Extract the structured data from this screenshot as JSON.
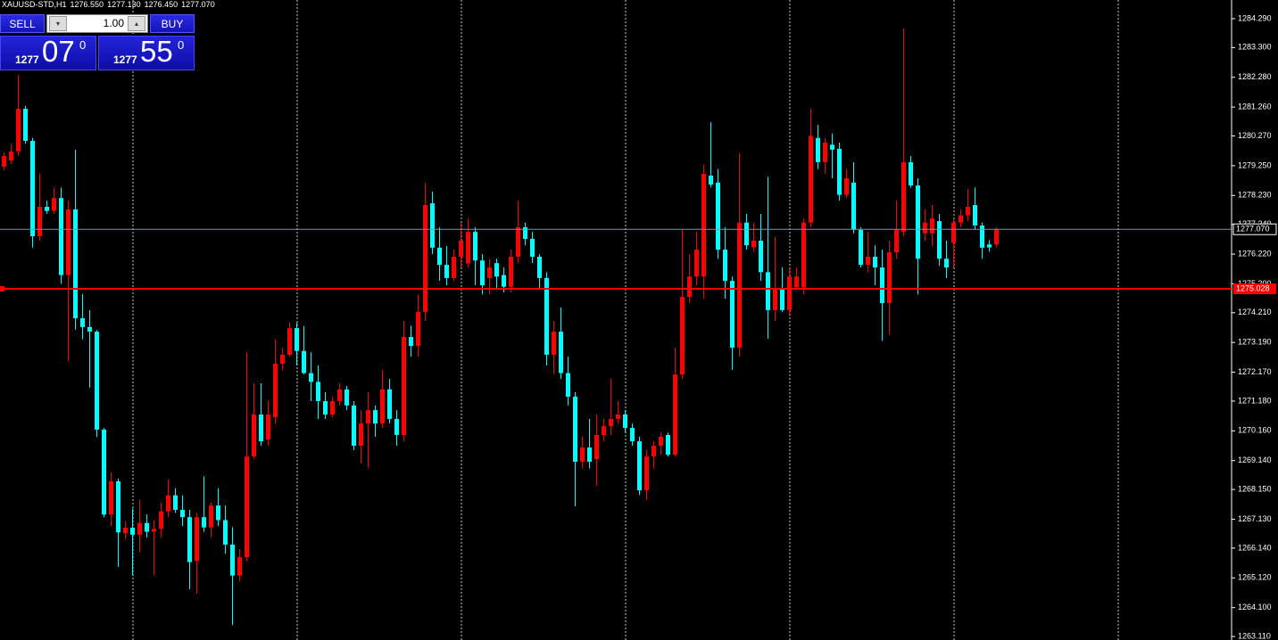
{
  "header": {
    "symbol": "XAUUSD-STD,H1",
    "quote": [
      "1276.550",
      "1277.130",
      "1276.450",
      "1277.070"
    ]
  },
  "trade_panel": {
    "sell": "SELL",
    "buy": "BUY",
    "lots": "1.00",
    "bid": {
      "big": "1277",
      "digits": "07",
      "pip": "0"
    },
    "ask": {
      "big": "1277",
      "digits": "55",
      "pip": "0"
    }
  },
  "chart_data": {
    "type": "candlestick",
    "up_color": "#ff0000",
    "down_color": "#00ffff",
    "ylim": [
      1262.99,
      1284.93
    ],
    "yticks": [
      {
        "value": 1284.29,
        "label": "1284.290"
      },
      {
        "value": 1283.3,
        "label": "1283.300"
      },
      {
        "value": 1282.28,
        "label": "1282.280"
      },
      {
        "value": 1281.26,
        "label": "1281.260"
      },
      {
        "value": 1280.27,
        "label": "1280.270"
      },
      {
        "value": 1279.25,
        "label": "1279.250"
      },
      {
        "value": 1278.23,
        "label": "1278.230"
      },
      {
        "value": 1277.24,
        "label": "1277.240"
      },
      {
        "value": 1276.22,
        "label": "1276.220"
      },
      {
        "value": 1275.2,
        "label": "1275.200"
      },
      {
        "value": 1274.21,
        "label": "1274.210"
      },
      {
        "value": 1273.19,
        "label": "1273.190"
      },
      {
        "value": 1272.17,
        "label": "1272.170"
      },
      {
        "value": 1271.18,
        "label": "1271.180"
      },
      {
        "value": 1270.16,
        "label": "1270.160"
      },
      {
        "value": 1269.14,
        "label": "1269.140"
      },
      {
        "value": 1268.15,
        "label": "1268.150"
      },
      {
        "value": 1267.13,
        "label": "1267.130"
      },
      {
        "value": 1266.14,
        "label": "1266.140"
      },
      {
        "value": 1265.12,
        "label": "1265.120"
      },
      {
        "value": 1264.1,
        "label": "1264.100"
      },
      {
        "value": 1263.11,
        "label": "1263.110"
      }
    ],
    "price_line": {
      "value": 1277.07,
      "label": "1277.070",
      "color": "#7f93a8"
    },
    "level_line": {
      "value": 1275.028,
      "label": "1275.028",
      "color": "#ff0000"
    },
    "ohlc": [
      [
        1279.22,
        1279.7,
        1279.1,
        1279.58
      ],
      [
        1279.43,
        1280.0,
        1279.3,
        1279.74
      ],
      [
        1279.74,
        1282.36,
        1279.6,
        1281.2
      ],
      [
        1281.2,
        1281.3,
        1280.0,
        1280.1
      ],
      [
        1280.1,
        1280.2,
        1276.44,
        1276.83
      ],
      [
        1276.83,
        1278.97,
        1276.68,
        1277.84
      ],
      [
        1277.84,
        1278.05,
        1277.6,
        1277.7
      ],
      [
        1277.7,
        1278.5,
        1277.6,
        1278.14
      ],
      [
        1278.14,
        1278.5,
        1275.2,
        1275.5
      ],
      [
        1275.5,
        1278.05,
        1272.55,
        1277.75
      ],
      [
        1277.75,
        1279.8,
        1273.63,
        1274.02
      ],
      [
        1274.02,
        1274.85,
        1273.3,
        1273.72
      ],
      [
        1273.72,
        1274.3,
        1271.64,
        1273.56
      ],
      [
        1273.56,
        1273.62,
        1269.95,
        1270.2
      ],
      [
        1270.2,
        1270.26,
        1267.2,
        1267.29
      ],
      [
        1267.29,
        1268.74,
        1266.9,
        1268.43
      ],
      [
        1268.43,
        1268.53,
        1265.5,
        1266.68
      ],
      [
        1266.65,
        1267.05,
        1266.45,
        1266.84
      ],
      [
        1266.84,
        1267.5,
        1265.2,
        1266.6
      ],
      [
        1266.6,
        1267.8,
        1266.0,
        1267.0
      ],
      [
        1267.0,
        1267.3,
        1266.5,
        1266.7
      ],
      [
        1266.7,
        1267.1,
        1265.2,
        1266.8
      ],
      [
        1266.8,
        1267.7,
        1266.5,
        1267.4
      ],
      [
        1267.4,
        1268.5,
        1267.2,
        1267.95
      ],
      [
        1267.95,
        1268.2,
        1267.35,
        1267.45
      ],
      [
        1267.45,
        1267.95,
        1266.9,
        1267.2
      ],
      [
        1267.2,
        1267.45,
        1264.73,
        1265.66
      ],
      [
        1265.7,
        1267.35,
        1264.58,
        1267.2
      ],
      [
        1267.2,
        1268.6,
        1266.7,
        1266.85
      ],
      [
        1266.85,
        1267.7,
        1266.5,
        1267.6
      ],
      [
        1267.6,
        1268.2,
        1266.9,
        1267.1
      ],
      [
        1267.1,
        1267.6,
        1265.95,
        1266.26
      ],
      [
        1266.26,
        1266.86,
        1263.5,
        1265.2
      ],
      [
        1265.2,
        1266.1,
        1265.0,
        1265.83
      ],
      [
        1265.83,
        1272.85,
        1265.7,
        1269.28
      ],
      [
        1269.28,
        1271.79,
        1269.2,
        1270.72
      ],
      [
        1270.72,
        1271.79,
        1269.65,
        1269.8
      ],
      [
        1269.86,
        1271.2,
        1269.65,
        1270.72
      ],
      [
        1270.63,
        1273.3,
        1270.4,
        1272.46
      ],
      [
        1272.46,
        1273.0,
        1272.25,
        1272.77
      ],
      [
        1272.77,
        1273.87,
        1272.7,
        1273.68
      ],
      [
        1273.68,
        1273.87,
        1272.4,
        1272.9
      ],
      [
        1272.9,
        1273.75,
        1272.1,
        1272.14
      ],
      [
        1272.14,
        1272.85,
        1271.18,
        1271.84
      ],
      [
        1271.84,
        1272.4,
        1270.57,
        1271.18
      ],
      [
        1271.18,
        1271.49,
        1270.57,
        1270.72
      ],
      [
        1270.72,
        1271.33,
        1270.63,
        1271.18
      ],
      [
        1271.18,
        1271.79,
        1271.03,
        1271.58
      ],
      [
        1271.58,
        1271.7,
        1270.87,
        1271.03
      ],
      [
        1271.03,
        1271.18,
        1269.5,
        1269.65
      ],
      [
        1269.65,
        1270.87,
        1269.04,
        1270.41
      ],
      [
        1270.41,
        1271.49,
        1268.9,
        1270.87
      ],
      [
        1270.87,
        1271.03,
        1269.96,
        1270.41
      ],
      [
        1270.41,
        1272.25,
        1270.26,
        1271.58
      ],
      [
        1271.58,
        1271.94,
        1270.41,
        1270.57
      ],
      [
        1270.57,
        1270.87,
        1269.65,
        1270.02
      ],
      [
        1270.02,
        1273.93,
        1269.8,
        1273.38
      ],
      [
        1273.38,
        1273.77,
        1272.7,
        1273.07
      ],
      [
        1273.07,
        1274.84,
        1272.7,
        1274.24
      ],
      [
        1274.24,
        1278.67,
        1273.93,
        1277.9
      ],
      [
        1277.96,
        1278.36,
        1276.22,
        1276.44
      ],
      [
        1276.44,
        1277.14,
        1275.3,
        1275.85
      ],
      [
        1275.85,
        1276.5,
        1275.15,
        1275.4
      ],
      [
        1275.4,
        1276.37,
        1275.3,
        1276.13
      ],
      [
        1276.13,
        1277.3,
        1275.76,
        1276.68
      ],
      [
        1275.9,
        1277.44,
        1275.76,
        1276.98
      ],
      [
        1276.98,
        1277.14,
        1275.15,
        1276.0
      ],
      [
        1276.0,
        1276.22,
        1274.84,
        1275.15
      ],
      [
        1275.4,
        1276.06,
        1274.84,
        1275.76
      ],
      [
        1275.91,
        1276.06,
        1274.99,
        1275.45
      ],
      [
        1275.5,
        1275.76,
        1274.9,
        1275.1
      ],
      [
        1275.1,
        1276.37,
        1274.9,
        1276.13
      ],
      [
        1276.13,
        1278.05,
        1275.91,
        1277.14
      ],
      [
        1277.14,
        1277.3,
        1276.52,
        1276.74
      ],
      [
        1276.74,
        1276.98,
        1275.91,
        1276.13
      ],
      [
        1276.13,
        1276.22,
        1275.0,
        1275.4
      ],
      [
        1275.4,
        1275.6,
        1272.4,
        1272.77
      ],
      [
        1272.77,
        1273.93,
        1272.1,
        1273.56
      ],
      [
        1273.56,
        1274.39,
        1271.94,
        1272.14
      ],
      [
        1272.14,
        1272.7,
        1271.03,
        1271.33
      ],
      [
        1271.33,
        1271.49,
        1267.57,
        1269.1
      ],
      [
        1269.1,
        1269.96,
        1268.87,
        1269.59
      ],
      [
        1269.59,
        1270.57,
        1268.87,
        1269.1
      ],
      [
        1269.19,
        1270.72,
        1268.28,
        1270.02
      ],
      [
        1270.02,
        1270.57,
        1269.8,
        1270.32
      ],
      [
        1270.32,
        1271.94,
        1270.02,
        1270.57
      ],
      [
        1270.57,
        1271.18,
        1270.41,
        1270.72
      ],
      [
        1270.72,
        1270.87,
        1270.1,
        1270.26
      ],
      [
        1270.26,
        1270.41,
        1269.65,
        1269.8
      ],
      [
        1269.8,
        1269.96,
        1267.96,
        1268.12
      ],
      [
        1268.12,
        1269.5,
        1267.8,
        1269.28
      ],
      [
        1269.28,
        1269.8,
        1268.87,
        1269.65
      ],
      [
        1269.65,
        1270.1,
        1269.34,
        1269.96
      ],
      [
        1270.02,
        1270.1,
        1269.28,
        1269.34
      ],
      [
        1269.34,
        1273.0,
        1269.28,
        1272.09
      ],
      [
        1272.09,
        1277.05,
        1271.94,
        1274.75
      ],
      [
        1274.75,
        1276.22,
        1274.54,
        1275.45
      ],
      [
        1275.45,
        1276.98,
        1275.15,
        1276.37
      ],
      [
        1275.45,
        1279.28,
        1274.69,
        1278.97
      ],
      [
        1278.91,
        1280.74,
        1278.5,
        1278.6
      ],
      [
        1278.67,
        1279.13,
        1276.06,
        1276.37
      ],
      [
        1276.37,
        1277.14,
        1274.69,
        1275.3
      ],
      [
        1275.3,
        1275.45,
        1272.25,
        1273.01
      ],
      [
        1273.01,
        1279.68,
        1272.7,
        1277.3
      ],
      [
        1277.3,
        1277.6,
        1276.37,
        1276.52
      ],
      [
        1276.45,
        1277.3,
        1276.3,
        1276.68
      ],
      [
        1276.68,
        1277.6,
        1275.3,
        1275.6
      ],
      [
        1275.6,
        1278.87,
        1273.32,
        1274.3
      ],
      [
        1274.3,
        1276.8,
        1273.93,
        1275.06
      ],
      [
        1275.06,
        1275.76,
        1274.24,
        1274.3
      ],
      [
        1274.3,
        1275.76,
        1274.08,
        1275.45
      ],
      [
        1275.08,
        1275.76,
        1274.99,
        1275.45
      ],
      [
        1275.08,
        1277.44,
        1274.84,
        1277.3
      ],
      [
        1277.3,
        1281.2,
        1277.14,
        1280.27
      ],
      [
        1280.2,
        1280.65,
        1279.13,
        1279.37
      ],
      [
        1279.37,
        1280.2,
        1278.97,
        1280.04
      ],
      [
        1279.97,
        1280.35,
        1278.82,
        1279.8
      ],
      [
        1279.83,
        1280.04,
        1278.05,
        1278.25
      ],
      [
        1278.25,
        1279.13,
        1278.14,
        1278.82
      ],
      [
        1278.67,
        1279.37,
        1276.93,
        1277.05
      ],
      [
        1277.05,
        1277.14,
        1275.76,
        1275.85
      ],
      [
        1275.85,
        1276.98,
        1275.6,
        1276.13
      ],
      [
        1276.13,
        1276.52,
        1275.15,
        1275.76
      ],
      [
        1275.76,
        1276.37,
        1273.25,
        1274.54
      ],
      [
        1274.54,
        1276.68,
        1273.47,
        1276.28
      ],
      [
        1276.28,
        1278.05,
        1276.06,
        1277.05
      ],
      [
        1276.98,
        1283.95,
        1276.83,
        1279.37
      ],
      [
        1279.37,
        1279.58,
        1278.5,
        1278.57
      ],
      [
        1278.57,
        1278.82,
        1274.84,
        1276.06
      ],
      [
        1276.93,
        1277.75,
        1276.68,
        1277.3
      ],
      [
        1276.93,
        1277.9,
        1276.5,
        1277.44
      ],
      [
        1277.35,
        1277.6,
        1275.82,
        1276.06
      ],
      [
        1276.06,
        1276.68,
        1275.4,
        1275.76
      ],
      [
        1276.6,
        1277.44,
        1275.76,
        1277.3
      ],
      [
        1277.3,
        1277.75,
        1277.14,
        1277.55
      ],
      [
        1277.55,
        1278.46,
        1277.35,
        1277.84
      ],
      [
        1277.9,
        1278.5,
        1277.05,
        1277.2
      ],
      [
        1277.2,
        1277.3,
        1276.06,
        1276.44
      ],
      [
        1276.55,
        1276.7,
        1276.3,
        1276.45
      ],
      [
        1276.55,
        1277.13,
        1276.45,
        1277.07
      ]
    ]
  }
}
